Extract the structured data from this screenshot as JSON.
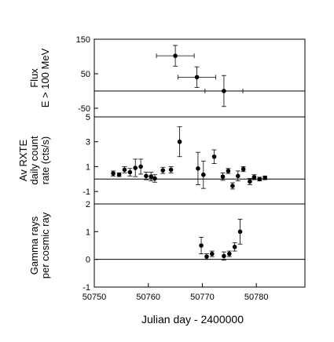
{
  "chart_data": {
    "type": "scatter",
    "xlabel": "Julian day - 2400000",
    "xlim": [
      50750,
      50789
    ],
    "xticks": [
      "50750",
      "50760",
      "50770",
      "50780"
    ],
    "panels": [
      {
        "id": "flux",
        "ylabel_lines": [
          "Flux",
          "E > 100 MeV"
        ],
        "ylim": [
          -75,
          150
        ],
        "yticks": [
          {
            "value": 150,
            "label": "150"
          },
          {
            "value": 50,
            "label": "50"
          },
          {
            "value": -50,
            "label": "-50"
          }
        ],
        "zero_line": 0,
        "points": [
          {
            "x": 50765,
            "y": 102,
            "xerr": 3.5,
            "yerr": 30
          },
          {
            "x": 50769,
            "y": 40,
            "xerr": 3.5,
            "yerr": 30
          },
          {
            "x": 50774,
            "y": 0,
            "xerr": 3.5,
            "yerr": 45
          }
        ]
      },
      {
        "id": "rxte",
        "ylabel_lines": [
          "Av RXTE",
          "daily count",
          "rate (cts/s)"
        ],
        "ylim": [
          -2,
          5
        ],
        "yticks": [
          {
            "value": 5,
            "label": "5"
          },
          {
            "value": 3,
            "label": "3"
          },
          {
            "value": 1,
            "label": "1"
          },
          {
            "value": -1,
            "label": "-1"
          }
        ],
        "zero_line": 0,
        "points": [
          {
            "x": 50753.5,
            "y": 0.45,
            "yerr": 0.2
          },
          {
            "x": 50754.6,
            "y": 0.35,
            "yerr": 0.15
          },
          {
            "x": 50755.6,
            "y": 0.75,
            "yerr": 0.25
          },
          {
            "x": 50756.6,
            "y": 0.55,
            "yerr": 0.3
          },
          {
            "x": 50757.6,
            "y": 0.9,
            "yerr": 0.7
          },
          {
            "x": 50758.6,
            "y": 1.0,
            "yerr": 0.6
          },
          {
            "x": 50759.6,
            "y": 0.25,
            "yerr": 0.3
          },
          {
            "x": 50760.5,
            "y": 0.2,
            "yerr": 0.35
          },
          {
            "x": 50761.2,
            "y": 0.05,
            "yerr": 0.3
          },
          {
            "x": 50762.7,
            "y": 0.7,
            "yerr": 0.25
          },
          {
            "x": 50764.2,
            "y": 0.75,
            "yerr": 0.25
          },
          {
            "x": 50765.8,
            "y": 3.0,
            "yerr": 1.2
          },
          {
            "x": 50769.2,
            "y": 0.85,
            "yerr": 1.3
          },
          {
            "x": 50770.2,
            "y": 0.35,
            "yerr": 1.1
          },
          {
            "x": 50772.2,
            "y": 1.8,
            "yerr": 0.55
          },
          {
            "x": 50773.8,
            "y": 0.2,
            "yerr": 0.3
          },
          {
            "x": 50774.8,
            "y": 0.65,
            "yerr": 0.2
          },
          {
            "x": 50775.6,
            "y": -0.55,
            "yerr": 0.25
          },
          {
            "x": 50776.6,
            "y": 0.25,
            "yerr": 0.4
          },
          {
            "x": 50777.6,
            "y": 0.8,
            "yerr": 0.2
          },
          {
            "x": 50778.8,
            "y": -0.2,
            "yerr": 0.25
          },
          {
            "x": 50779.6,
            "y": 0.15,
            "yerr": 0.2
          },
          {
            "x": 50780.6,
            "y": 0.0,
            "yerr": 0.15
          },
          {
            "x": 50781.6,
            "y": 0.1,
            "yerr": 0.15
          }
        ]
      },
      {
        "id": "gamma",
        "ylabel_lines": [
          "Gamma rays",
          "per cosmic ray"
        ],
        "ylim": [
          -1,
          2
        ],
        "yticks": [
          {
            "value": 2,
            "label": "2"
          },
          {
            "value": 1,
            "label": "1"
          },
          {
            "value": 0,
            "label": "0"
          },
          {
            "value": -1,
            "label": "-1"
          }
        ],
        "zero_line": 0,
        "points": [
          {
            "x": 50769.8,
            "y": 0.5,
            "yerr": 0.3
          },
          {
            "x": 50770.8,
            "y": 0.1,
            "yerr": 0.1
          },
          {
            "x": 50771.8,
            "y": 0.2,
            "yerr": 0.1
          },
          {
            "x": 50774.0,
            "y": 0.12,
            "yerr": 0.15
          },
          {
            "x": 50775.0,
            "y": 0.2,
            "yerr": 0.1
          },
          {
            "x": 50776.0,
            "y": 0.45,
            "yerr": 0.15
          },
          {
            "x": 50777.0,
            "y": 1.0,
            "yerr": 0.45
          }
        ]
      }
    ]
  }
}
